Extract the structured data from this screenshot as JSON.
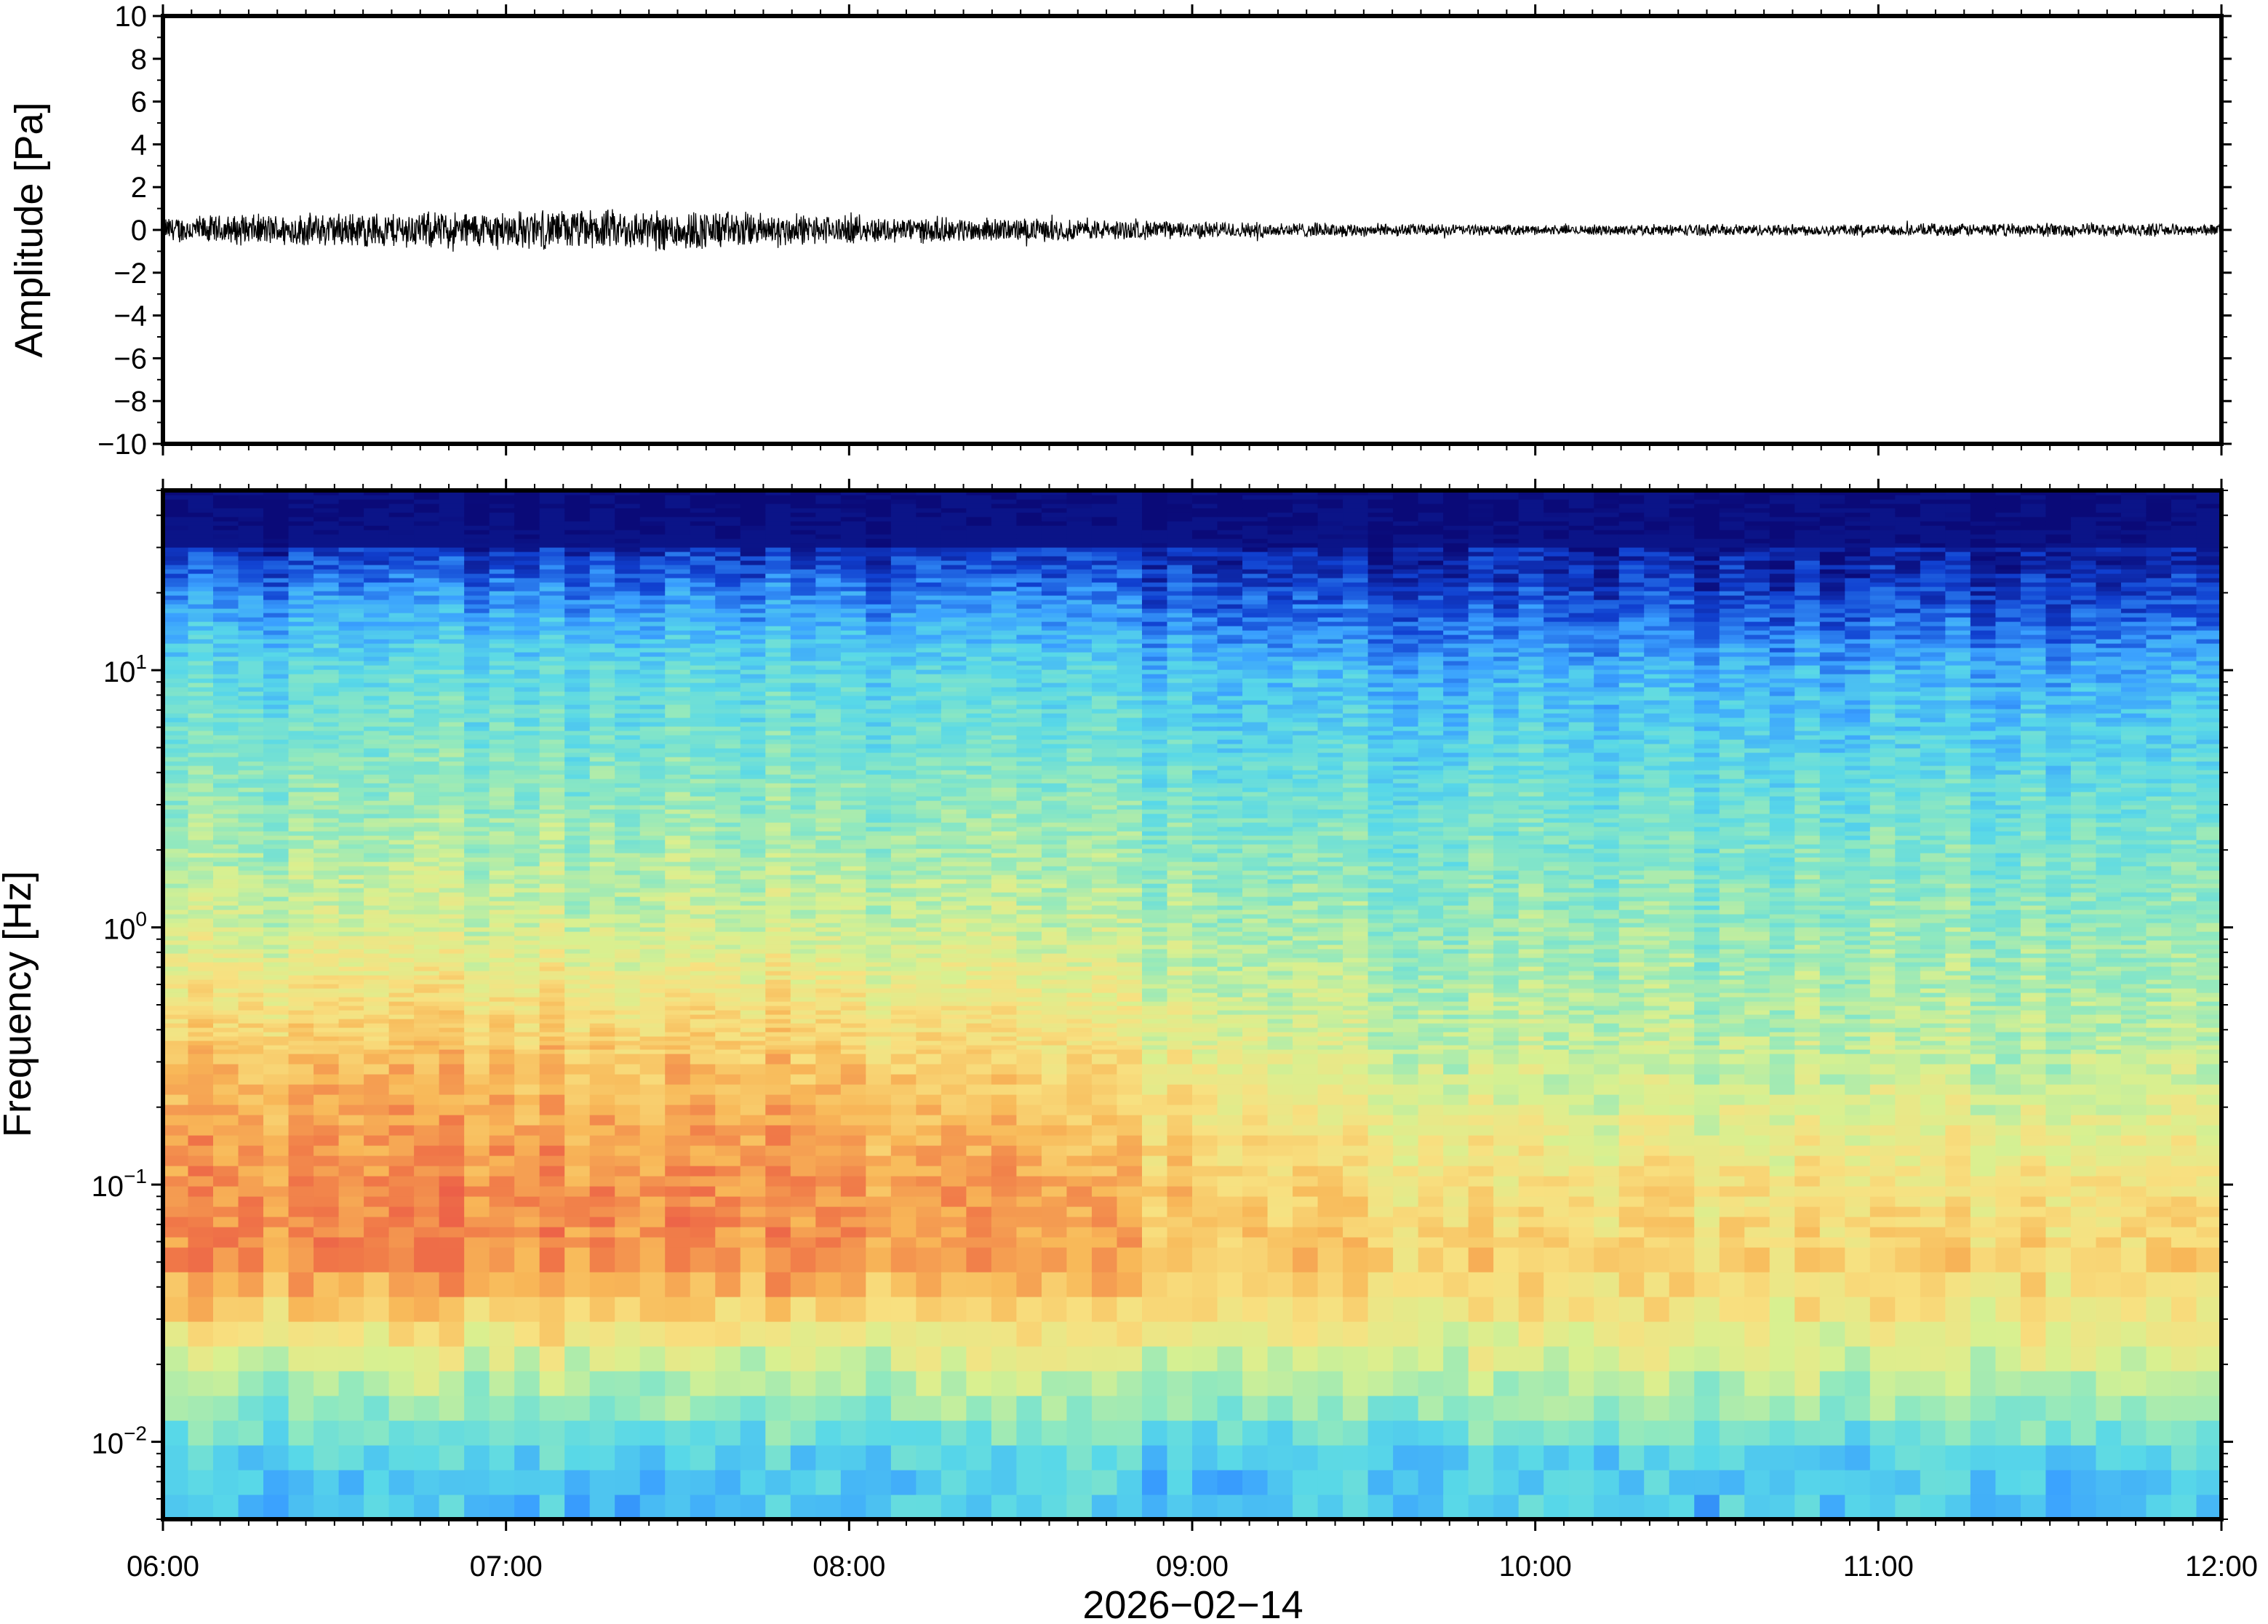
{
  "chart_data": [
    {
      "type": "line",
      "panel": "waveform",
      "ylabel": "Amplitude [Pa]",
      "xlabel": "",
      "ylim": [
        -10,
        10
      ],
      "yticks": [
        -10,
        -8,
        -6,
        -4,
        -2,
        0,
        2,
        4,
        6,
        8,
        10
      ],
      "ytick_labels": [
        "−10",
        "−8",
        "−6",
        "−4",
        "−2",
        "0",
        "2",
        "4",
        "6",
        "8",
        "10"
      ],
      "xlim": [
        "06:00",
        "12:00"
      ],
      "series": [
        {
          "x": [
            "06:00",
            "06:30",
            "07:00",
            "07:30",
            "08:00",
            "08:30",
            "09:00",
            "09:30",
            "10:00",
            "10:30",
            "11:00",
            "11:30",
            "12:00"
          ],
          "y_envelope_max": [
            0.7,
            0.9,
            1.0,
            1.1,
            0.7,
            0.6,
            0.45,
            0.35,
            0.25,
            0.3,
            0.3,
            0.35,
            0.3
          ],
          "y_envelope_min": [
            -0.7,
            -0.9,
            -1.0,
            -1.1,
            -0.7,
            -0.6,
            -0.45,
            -0.35,
            -0.25,
            -0.3,
            -0.3,
            -0.35,
            -0.3
          ],
          "peak_max": 1.6,
          "peak_min": -1.7
        }
      ]
    },
    {
      "type": "heatmap",
      "panel": "spectrogram",
      "ylabel": "Frequency [Hz]",
      "xlabel": "2026−02−14",
      "yscale": "log",
      "ylim": [
        0.005,
        50
      ],
      "yticks": [
        0.01,
        0.1,
        1,
        10
      ],
      "ytick_labels": [
        {
          "base": "10",
          "exp": "−2"
        },
        {
          "base": "10",
          "exp": "−1"
        },
        {
          "base": "10",
          "exp": "0"
        },
        {
          "base": "10",
          "exp": "1"
        }
      ],
      "xlim": [
        "06:00",
        "12:00"
      ],
      "xticks": [
        "06:00",
        "07:00",
        "08:00",
        "09:00",
        "10:00",
        "11:00",
        "12:00"
      ],
      "colormap": "jet-like (dark blue low, red high)",
      "colors": [
        "#0a0a78",
        "#1040d0",
        "#3aa0ff",
        "#58d8e8",
        "#8ee8c0",
        "#d8f090",
        "#f8e080",
        "#f8b858",
        "#f07848",
        "#e84848"
      ],
      "relative_level_profile": [
        {
          "f_hz": 40,
          "early": 0.0,
          "late": 0.0
        },
        {
          "f_hz": 20,
          "early": 0.2,
          "late": 0.1
        },
        {
          "f_hz": 10,
          "early": 0.35,
          "late": 0.25
        },
        {
          "f_hz": 3,
          "early": 0.45,
          "late": 0.38
        },
        {
          "f_hz": 1,
          "early": 0.55,
          "late": 0.45
        },
        {
          "f_hz": 0.3,
          "early": 0.75,
          "late": 0.52
        },
        {
          "f_hz": 0.1,
          "early": 0.85,
          "late": 0.65
        },
        {
          "f_hz": 0.05,
          "early": 0.85,
          "late": 0.7
        },
        {
          "f_hz": 0.02,
          "early": 0.55,
          "late": 0.55
        },
        {
          "f_hz": 0.008,
          "early": 0.3,
          "late": 0.3
        }
      ]
    }
  ]
}
